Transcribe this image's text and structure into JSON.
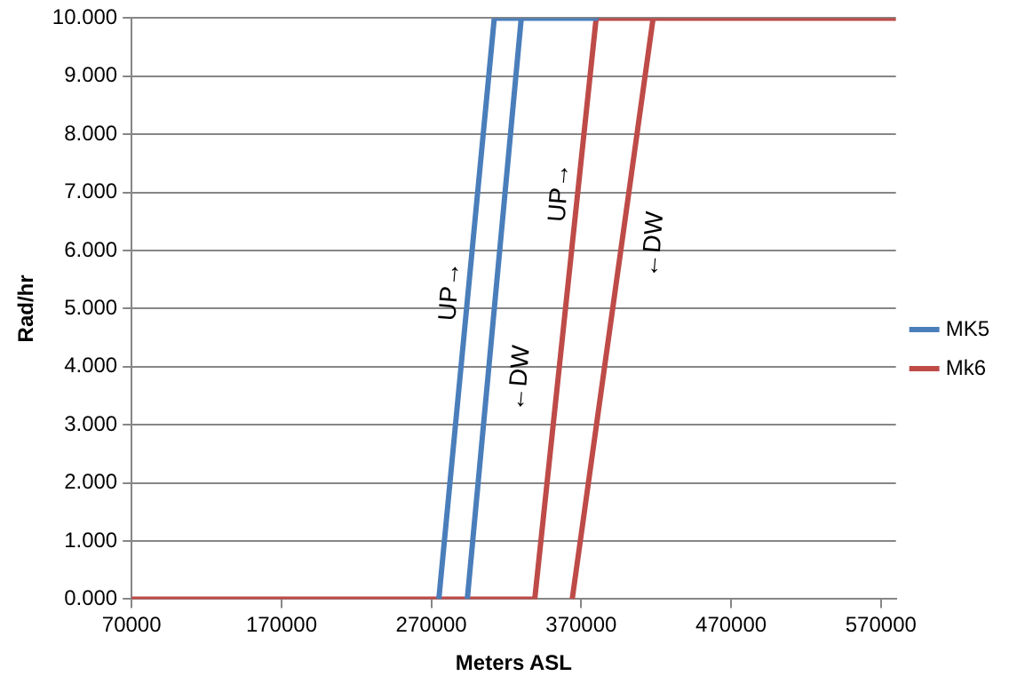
{
  "chart_data": {
    "type": "line",
    "xlabel": "Meters ASL",
    "ylabel": "Rad/hr",
    "xlim": [
      70000,
      580000
    ],
    "xticks": [
      70000,
      170000,
      270000,
      370000,
      470000,
      570000
    ],
    "ylim": [
      0,
      10
    ],
    "yticks": [
      {
        "value": 0,
        "label": "0.000"
      },
      {
        "value": 1,
        "label": "1.000"
      },
      {
        "value": 2,
        "label": "2.000"
      },
      {
        "value": 3,
        "label": "3.000"
      },
      {
        "value": 4,
        "label": "4.000"
      },
      {
        "value": 5,
        "label": "5.000"
      },
      {
        "value": 6,
        "label": "6.000"
      },
      {
        "value": 7,
        "label": "7.000"
      },
      {
        "value": 8,
        "label": "8.000"
      },
      {
        "value": 9,
        "label": "9.000"
      },
      {
        "value": 10,
        "label": "10.000"
      }
    ],
    "series": [
      {
        "name": "MK5",
        "color": "#4a7ebb",
        "x": [
          275000,
          312000,
          380000,
          330000,
          294000
        ],
        "values": [
          0,
          10,
          10,
          10,
          0
        ]
      },
      {
        "name": "Mk6",
        "color": "#be4b48",
        "x": [
          70000,
          339000,
          380000,
          580000,
          418000,
          364000
        ],
        "values": [
          0,
          0,
          10,
          10,
          10,
          0
        ]
      }
    ],
    "annotations": [
      "UP→",
      "←DW",
      "UP→",
      "←DW"
    ],
    "grid": "y",
    "legend": "right",
    "marker": "none",
    "line_style": "solid"
  }
}
